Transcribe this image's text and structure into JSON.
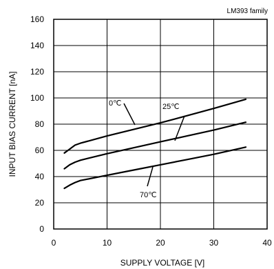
{
  "chart_data": {
    "type": "line",
    "annotation": "LM393 family",
    "xlabel": "SUPPLY VOLTAGE  [V]",
    "ylabel": "INPUT BIAS CURRENT [nA]",
    "xlim": [
      0,
      40
    ],
    "ylim": [
      0,
      160
    ],
    "xticks": [
      0,
      10,
      20,
      30,
      40
    ],
    "yticks": [
      0,
      20,
      40,
      60,
      80,
      100,
      120,
      140,
      160
    ],
    "grid": true,
    "series": [
      {
        "name": "0℃",
        "points": [
          [
            2,
            58
          ],
          [
            3,
            61
          ],
          [
            4,
            64
          ],
          [
            5,
            65.5
          ],
          [
            10,
            71
          ],
          [
            15,
            76
          ],
          [
            20,
            81
          ],
          [
            25,
            86.5
          ],
          [
            30,
            92
          ],
          [
            36,
            99
          ]
        ]
      },
      {
        "name": "25℃",
        "points": [
          [
            2,
            46
          ],
          [
            3,
            49
          ],
          [
            4,
            51
          ],
          [
            5,
            52.5
          ],
          [
            10,
            57.5
          ],
          [
            15,
            62
          ],
          [
            20,
            66.5
          ],
          [
            25,
            71
          ],
          [
            30,
            75.5
          ],
          [
            36,
            81.5
          ]
        ]
      },
      {
        "name": "70℃",
        "points": [
          [
            2,
            31
          ],
          [
            3,
            33.5
          ],
          [
            4,
            35.5
          ],
          [
            5,
            37
          ],
          [
            10,
            41
          ],
          [
            15,
            45
          ],
          [
            20,
            49
          ],
          [
            25,
            53
          ],
          [
            30,
            57
          ],
          [
            36,
            62.5
          ]
        ]
      }
    ]
  }
}
